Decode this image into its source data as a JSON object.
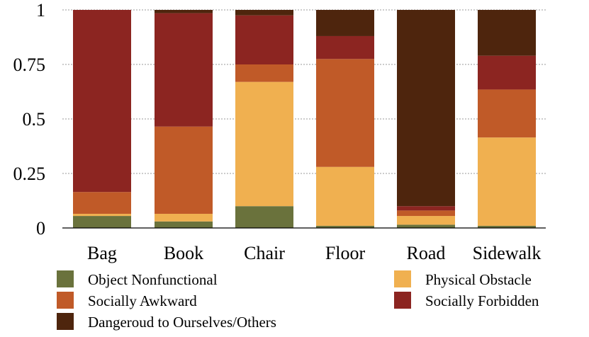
{
  "chart_data": {
    "type": "bar",
    "stacked": true,
    "title": "",
    "xlabel": "",
    "ylabel": "",
    "ylim": [
      0,
      1
    ],
    "grid": true,
    "yticks": [
      0,
      0.25,
      0.5,
      0.75,
      1
    ],
    "ytick_labels": [
      "0",
      "0.25",
      "0.5",
      "0.75",
      "1"
    ],
    "categories": [
      "Bag",
      "Book",
      "Chair",
      "Floor",
      "Road",
      "Sidewalk"
    ],
    "series": [
      {
        "name": "Object Nonfunctional",
        "color": "#6a723c",
        "values": [
          0.055,
          0.03,
          0.1,
          0.01,
          0.015,
          0.01
        ]
      },
      {
        "name": "Physical Obstacle",
        "color": "#f0b050",
        "values": [
          0.01,
          0.035,
          0.57,
          0.27,
          0.04,
          0.405
        ]
      },
      {
        "name": "Socially Awkward",
        "color": "#c05a28",
        "values": [
          0.1,
          0.4,
          0.08,
          0.495,
          0.025,
          0.22
        ]
      },
      {
        "name": "Socially Forbidden",
        "color": "#8c2521",
        "values": [
          0.835,
          0.52,
          0.225,
          0.105,
          0.02,
          0.155
        ]
      },
      {
        "name": "Dangeroud to Ourselves/Others",
        "color": "#4e250d",
        "values": [
          0.0,
          0.015,
          0.025,
          0.12,
          0.9,
          0.21
        ]
      }
    ],
    "legend": {
      "placement": "bottom",
      "order": [
        "Object Nonfunctional",
        "Physical Obstacle",
        "Socially Awkward",
        "Socially Forbidden",
        "Dangeroud to Ourselves/Others"
      ]
    }
  }
}
